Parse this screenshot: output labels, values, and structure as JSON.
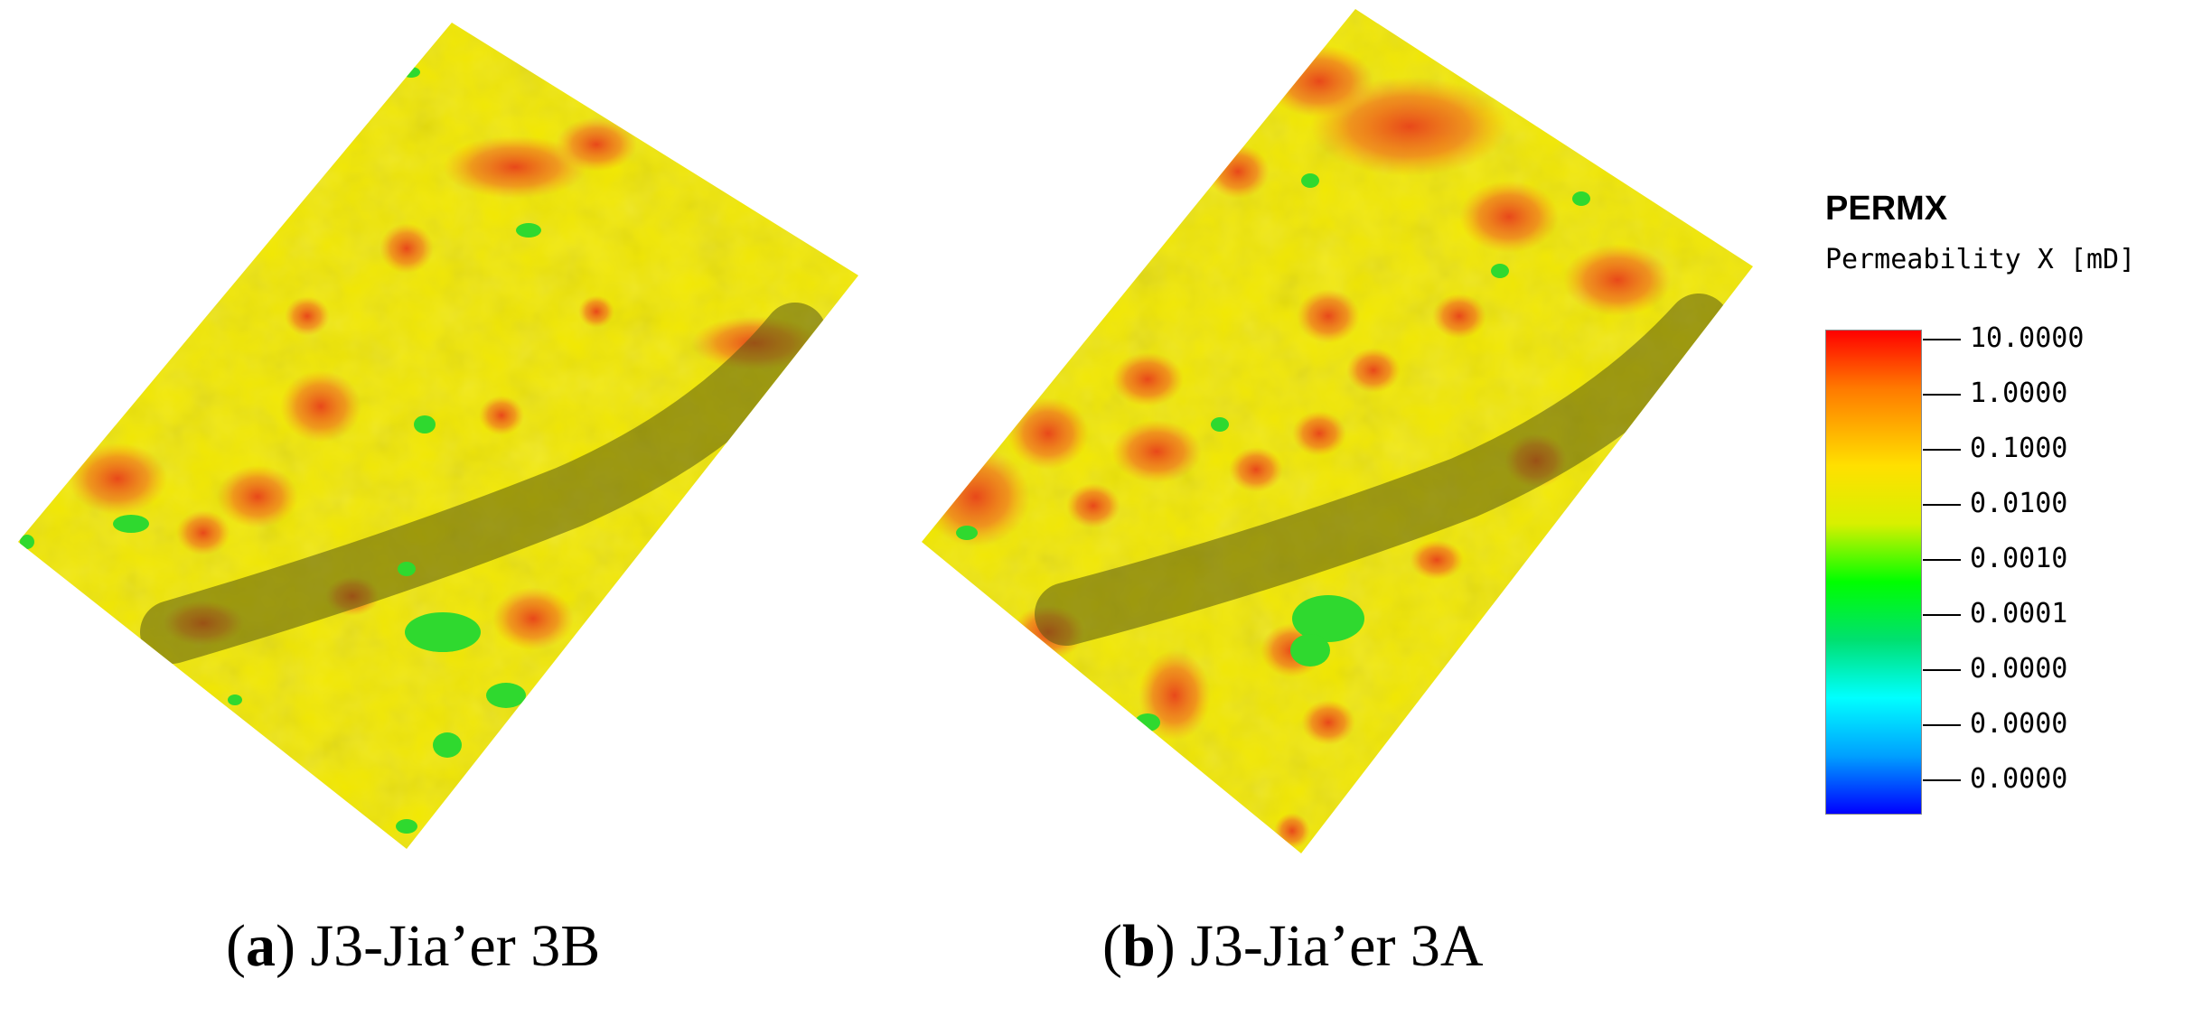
{
  "panels": [
    {
      "label_letter": "a",
      "label_text": "J3-Jia’er 3B"
    },
    {
      "label_letter": "b",
      "label_text": "J3-Jia’er 3A"
    }
  ],
  "legend": {
    "title": "PERMX",
    "subtitle": "Permeability X [mD]",
    "ticks": [
      "10.0000",
      "1.0000",
      "0.1000",
      "0.0100",
      "0.0010",
      "0.0001",
      "0.0000",
      "0.0000",
      "0.0000"
    ],
    "colors": {
      "high": "#ff0000",
      "mid_high": "#ff7a00",
      "mid": "#ffe000",
      "low_mid": "#00ff00",
      "low": "#00ffff",
      "min": "#0000ff"
    }
  },
  "colors": {
    "surface_base": "#f2e800",
    "hotspot": "#f06a1a",
    "green_patch": "#2fd92f",
    "ridge_shadow": "#6f6a1a"
  }
}
